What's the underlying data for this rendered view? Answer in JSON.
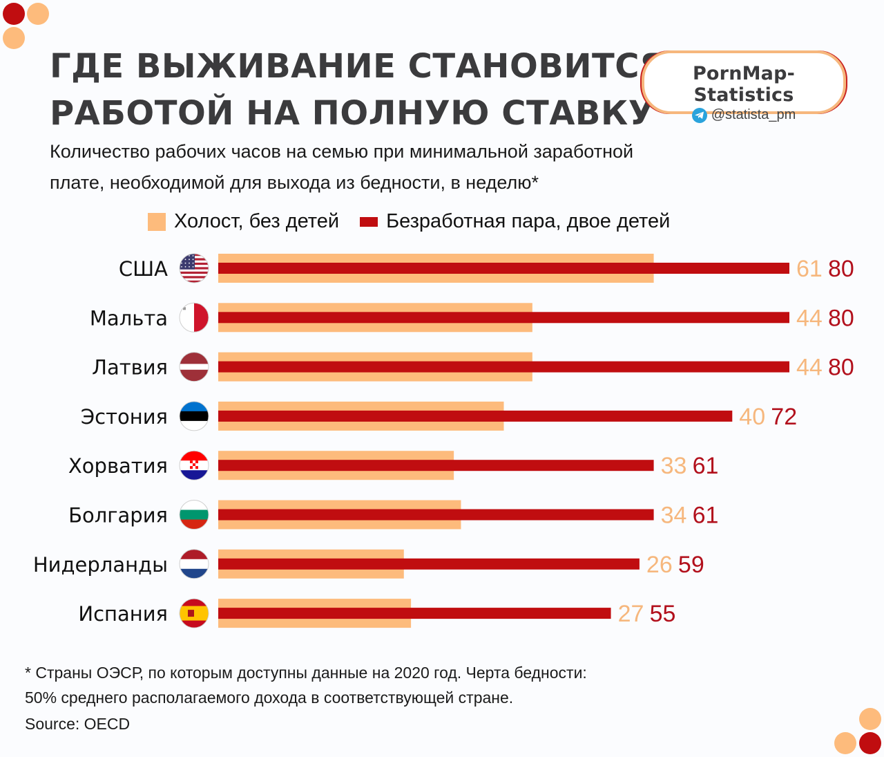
{
  "header": {
    "title_line1": "ГДЕ ВЫЖИВАНИЕ СТАНОВИТСЯ",
    "title_line2": "РАБОТОЙ НА ПОЛНУЮ СТАВКУ",
    "subtitle_line1": "Количество рабочих часов на семью при минимальной заработной",
    "subtitle_line2": "плате, необходимой для выхода из бедности, в неделю*"
  },
  "badge": {
    "brand": "PornMap-Statistics",
    "handle": "@statista_pm",
    "icon": "telegram-icon"
  },
  "colors": {
    "single": "#fdbb7c",
    "couple": "#c00d10",
    "title": "#3b3b3d",
    "single_label": "#f6b77d",
    "couple_label": "#b2101c"
  },
  "chart_data": {
    "type": "bar",
    "orientation": "horizontal",
    "title": "ГДЕ ВЫЖИВАНИЕ СТАНОВИТСЯ РАБОТОЙ НА ПОЛНУЮ СТАВКУ",
    "xlabel": "",
    "ylabel": "",
    "xlim": [
      0,
      80
    ],
    "grid": false,
    "legend_position": "top",
    "categories": [
      "США",
      "Мальта",
      "Латвия",
      "Эстония",
      "Хорватия",
      "Болгария",
      "Нидерланды",
      "Испания"
    ],
    "flags": [
      "us-flag-icon",
      "malta-flag-icon",
      "latvia-flag-icon",
      "estonia-flag-icon",
      "croatia-flag-icon",
      "bulgaria-flag-icon",
      "netherlands-flag-icon",
      "spain-flag-icon"
    ],
    "series": [
      {
        "name": "Холост, без детей",
        "values": [
          61,
          44,
          44,
          40,
          33,
          34,
          26,
          27
        ]
      },
      {
        "name": "Безработная пара, двое детей",
        "values": [
          80,
          80,
          80,
          72,
          61,
          61,
          59,
          55
        ]
      }
    ]
  },
  "footer": {
    "note_line1": "* Страны ОЭСР, по которым доступны данные на 2020 год. Черта бедности:",
    "note_line2": "50% среднего располагаемого дохода в соответствующей стране.",
    "source": "Source: OECD"
  }
}
